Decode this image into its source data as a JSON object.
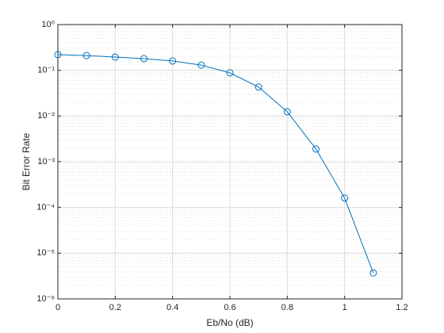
{
  "chart_data": {
    "type": "line",
    "xlabel": "Eb/No (dB)",
    "ylabel": "Bit Error Rate",
    "x": [
      0,
      0.1,
      0.2,
      0.3,
      0.4,
      0.5,
      0.6,
      0.7,
      0.8,
      0.9,
      1.0,
      1.1
    ],
    "series": [
      {
        "color": "#0072bd",
        "marker": "circle",
        "values": [
          0.22,
          0.21,
          0.195,
          0.18,
          0.16,
          0.13,
          0.088,
          0.043,
          0.0124,
          0.0019,
          0.00016,
          3.7e-06
        ]
      }
    ],
    "xlim": [
      0,
      1.2
    ],
    "xticks": [
      0,
      0.2,
      0.4,
      0.6,
      0.8,
      1,
      1.2
    ],
    "ylim": [
      1e-06,
      1
    ],
    "ylog": true,
    "grid": true,
    "minor_grid": true,
    "yticks": [
      {
        "value": 1e-06,
        "label": "10⁻⁶"
      },
      {
        "value": 1e-05,
        "label": "10⁻⁵"
      },
      {
        "value": 0.0001,
        "label": "10⁻⁴"
      },
      {
        "value": 0.001,
        "label": "10⁻³"
      },
      {
        "value": 0.01,
        "label": "10⁻²"
      },
      {
        "value": 0.1,
        "label": "10⁻¹"
      },
      {
        "value": 1,
        "label": "10⁰"
      }
    ]
  }
}
